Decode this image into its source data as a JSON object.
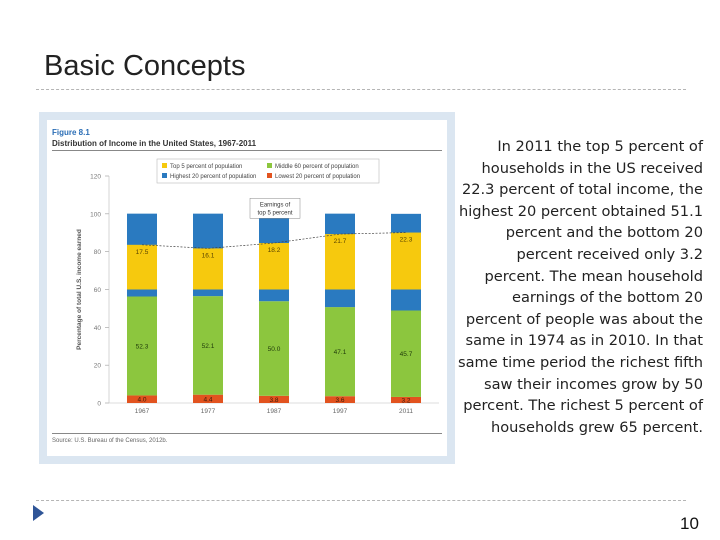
{
  "slide": {
    "title": "Basic Concepts",
    "body_text": "In 2011 the top 5 percent of households in the US received 22.3 percent of total income, the highest 20 percent obtained 51.1 percent and the bottom 20 percent received only 3.2 percent. The mean household earnings of the bottom 20 percent of people was about the same in 1974 as in 2010. In that same time period the richest fifth saw their incomes grow by 50 percent. The richest 5 percent of households grew 65 percent.",
    "page_number": "10"
  },
  "figure": {
    "label": "Figure 8.1",
    "title": "Distribution of Income in the United States, 1967-2011",
    "source": "Source: U.S. Bureau of the Census, 2012b."
  },
  "chart_data": {
    "type": "bar",
    "stacked": true,
    "categories": [
      "1967",
      "1977",
      "1987",
      "1997",
      "2011"
    ],
    "ylabel": "Percentage of total U.S. income earned",
    "ylim": [
      0,
      120
    ],
    "yticks": [
      0,
      20,
      40,
      60,
      80,
      100,
      120
    ],
    "legend": [
      {
        "name": "Top 5 percent of population",
        "color": "#f6c90e"
      },
      {
        "name": "Middle 60 percent of population",
        "color": "#8cc63e"
      },
      {
        "name": "Highest 20 percent of population",
        "color": "#2a7ac0"
      },
      {
        "name": "Lowest 20 percent of population",
        "color": "#e2531f"
      }
    ],
    "series": [
      {
        "name": "Lowest 20 percent",
        "color": "#e2531f",
        "values": [
          4.0,
          4.4,
          3.8,
          3.6,
          3.2
        ]
      },
      {
        "name": "Middle 60 percent",
        "color": "#8cc63e",
        "values": [
          52.3,
          52.1,
          50.0,
          47.1,
          45.7
        ]
      },
      {
        "name": "Highest 20 percent",
        "color": "#2a7ac0",
        "values": [
          43.8,
          43.6,
          46.2,
          49.4,
          51.1
        ]
      },
      {
        "name": "Top 5 percent",
        "color": "#f6c90e",
        "values": [
          17.5,
          16.1,
          18.2,
          21.7,
          22.3
        ]
      }
    ],
    "annotation": "Earnings of top 5 percent"
  }
}
